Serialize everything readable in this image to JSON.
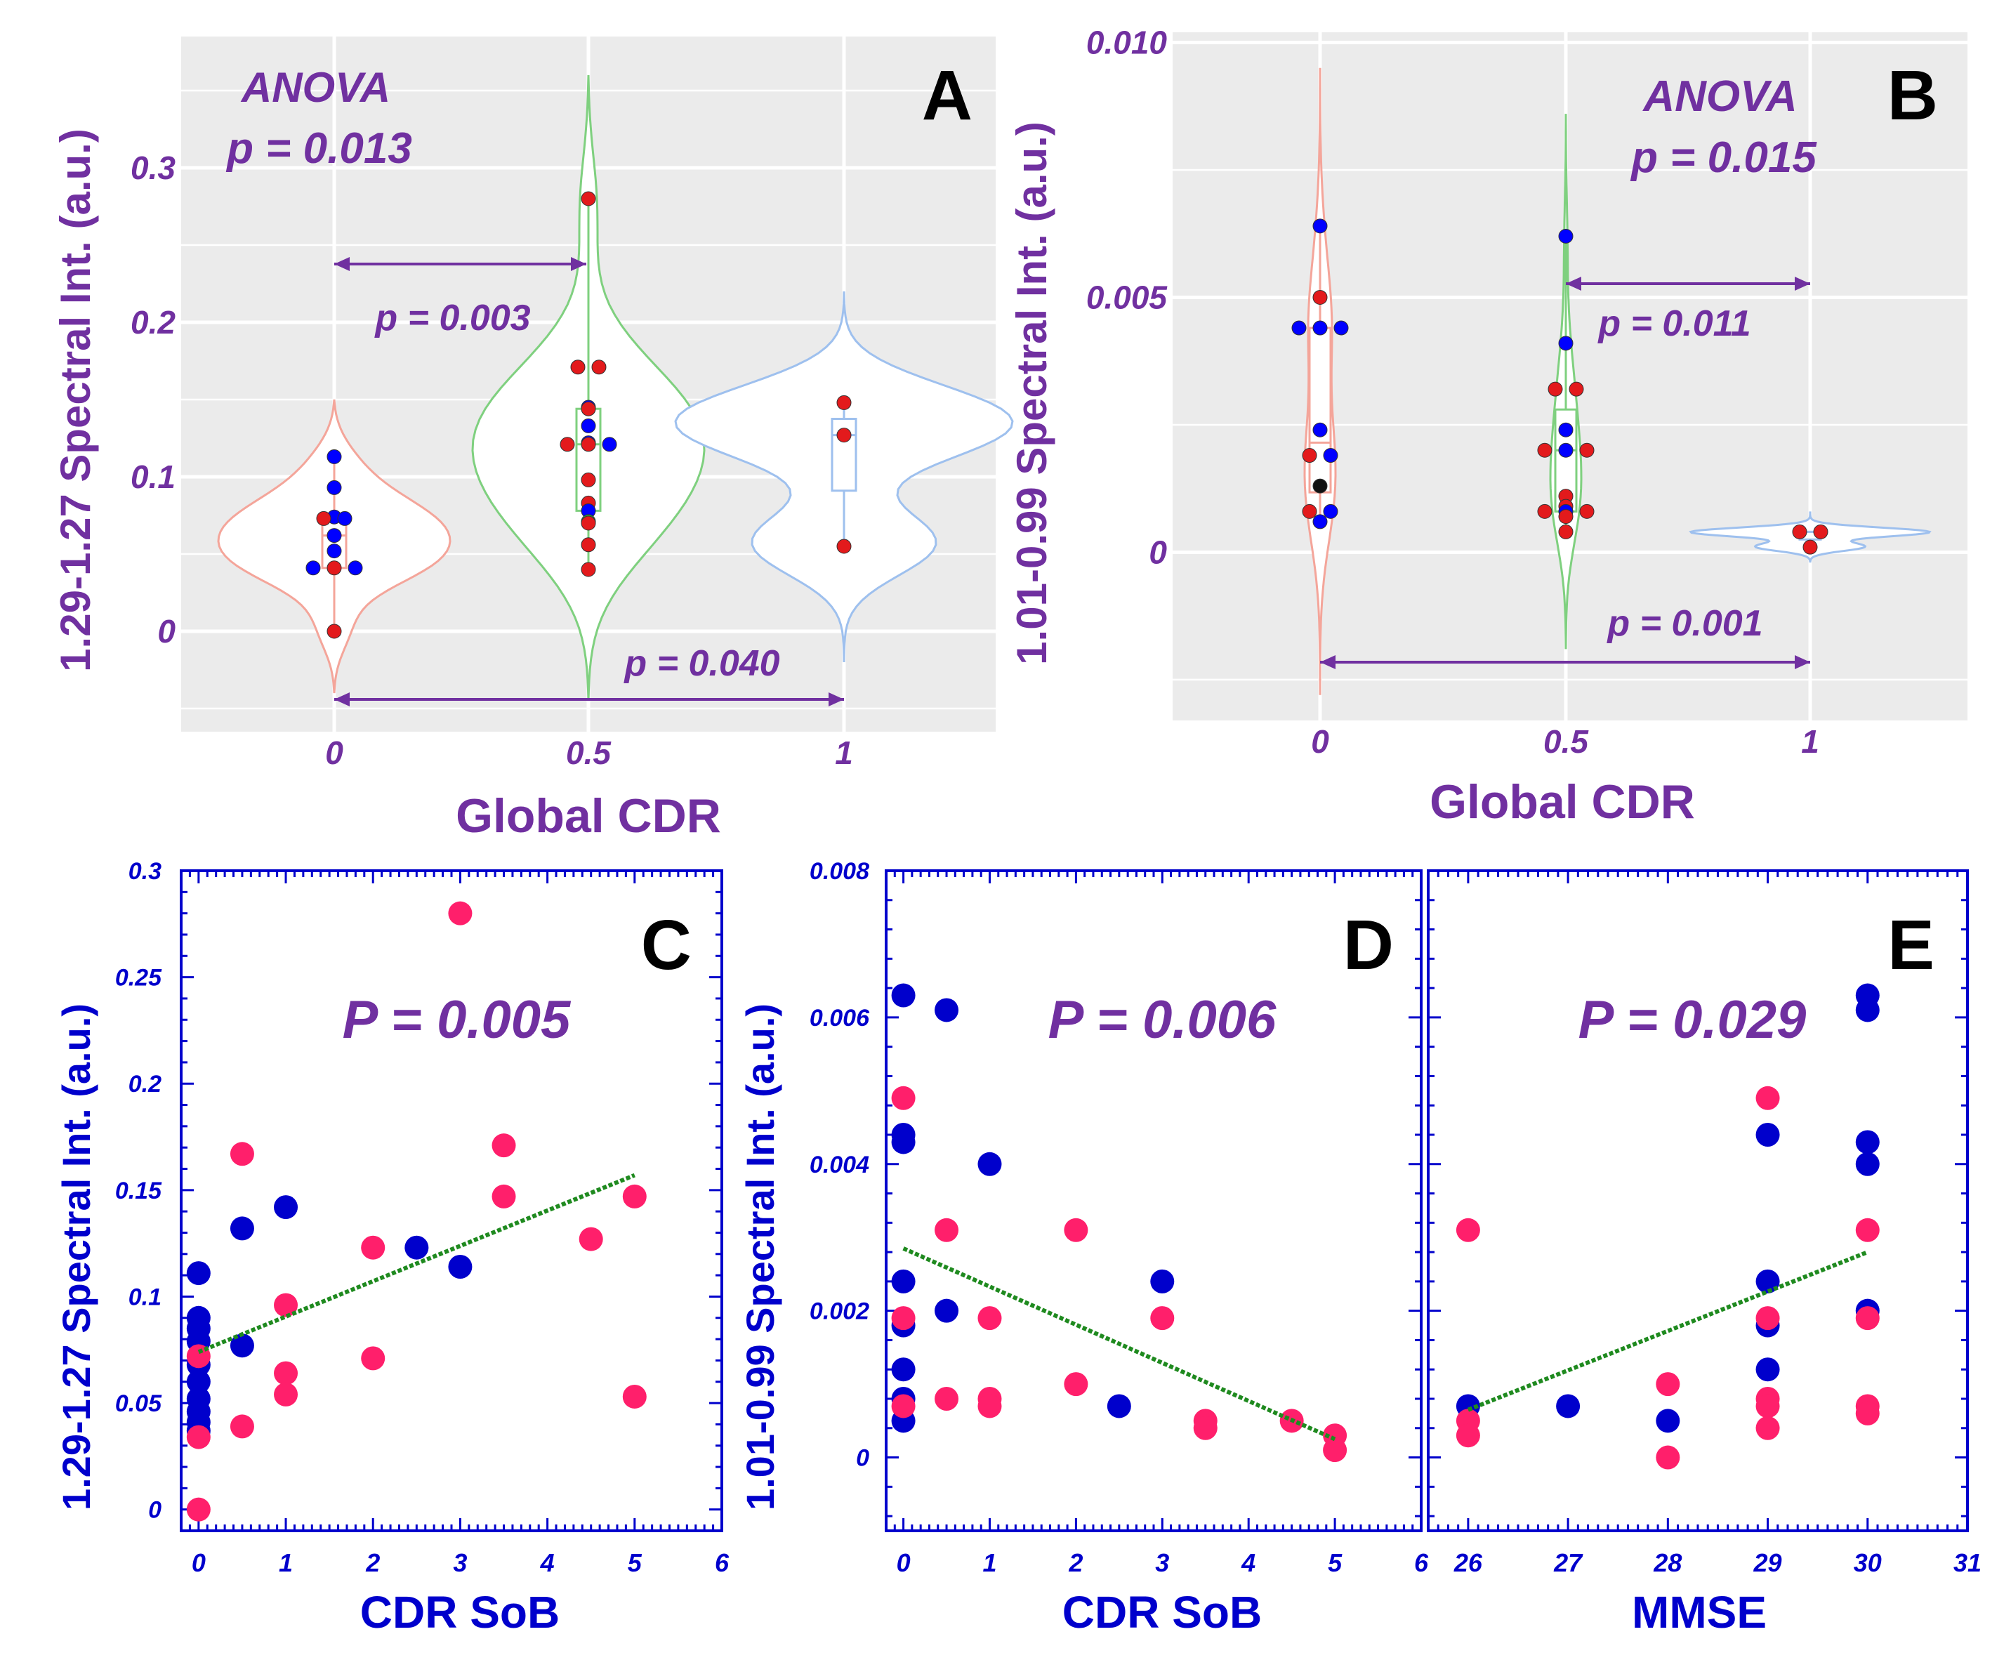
{
  "colors": {
    "purple": "#7030a0",
    "navy": "#0000cc",
    "panel_bg": "#ebebeb",
    "red_dot": "#e31a1c",
    "blue_dot": "#0000ff",
    "pink_dot": "#ff1f6b",
    "scatter_blue": "#0000cc",
    "trend": "#1f8a1f",
    "violin_0": "#f4a59a",
    "violin_05": "#7fd07f",
    "violin_1": "#9ec0ee"
  },
  "chart_data": [
    {
      "panel": "A",
      "type": "violin",
      "ylabel": "1.29-1.27 Spectral Int. (a.u.)",
      "xlabel": "Global CDR",
      "categories": [
        "0",
        "0.5",
        "1"
      ],
      "yticks": [
        "0",
        "0.1",
        "0.2",
        "0.3"
      ],
      "ylim": [
        -0.065,
        0.385
      ],
      "annotations": {
        "anova": "ANOVA",
        "anova_p": "p = 0.013",
        "p1": "p = 0.003",
        "p2": "p = 0.040"
      },
      "groups": [
        {
          "label": "0",
          "violin_range": [
            -0.04,
            0.15
          ],
          "points": [
            {
              "y": 0.113,
              "c": "blue"
            },
            {
              "y": 0.093,
              "c": "blue"
            },
            {
              "y": 0.074,
              "c": "blue"
            },
            {
              "y": 0.073,
              "c": "red"
            },
            {
              "y": 0.073,
              "c": "blue"
            },
            {
              "y": 0.062,
              "c": "blue"
            },
            {
              "y": 0.052,
              "c": "blue"
            },
            {
              "y": 0.041,
              "c": "blue"
            },
            {
              "y": 0.041,
              "c": "red"
            },
            {
              "y": 0.041,
              "c": "blue"
            },
            {
              "y": 0.0,
              "c": "red"
            }
          ]
        },
        {
          "label": "0.5",
          "violin_range": [
            -0.045,
            0.36
          ],
          "points": [
            {
              "y": 0.28,
              "c": "red"
            },
            {
              "y": 0.171,
              "c": "red"
            },
            {
              "y": 0.171,
              "c": "red"
            },
            {
              "y": 0.145,
              "c": "blue"
            },
            {
              "y": 0.144,
              "c": "red"
            },
            {
              "y": 0.133,
              "c": "blue"
            },
            {
              "y": 0.122,
              "c": "blue"
            },
            {
              "y": 0.121,
              "c": "red"
            },
            {
              "y": 0.121,
              "c": "red"
            },
            {
              "y": 0.121,
              "c": "blue"
            },
            {
              "y": 0.098,
              "c": "red"
            },
            {
              "y": 0.083,
              "c": "red"
            },
            {
              "y": 0.078,
              "c": "blue"
            },
            {
              "y": 0.071,
              "c": "green"
            },
            {
              "y": 0.07,
              "c": "red"
            },
            {
              "y": 0.056,
              "c": "red"
            },
            {
              "y": 0.04,
              "c": "red"
            }
          ]
        },
        {
          "label": "1",
          "violin_range": [
            -0.02,
            0.22
          ],
          "points": [
            {
              "y": 0.148,
              "c": "red"
            },
            {
              "y": 0.127,
              "c": "red"
            },
            {
              "y": 0.055,
              "c": "red"
            }
          ]
        }
      ]
    },
    {
      "panel": "B",
      "type": "violin",
      "ylabel": "1.01-0.99 Spectral Int. (a.u.)",
      "xlabel": "Global CDR",
      "categories": [
        "0",
        "0.5",
        "1"
      ],
      "yticks": [
        "0",
        "0.005",
        "0.010"
      ],
      "ylim": [
        -0.0033,
        0.0102
      ],
      "annotations": {
        "anova": "ANOVA",
        "anova_p": "p = 0.015",
        "p1": "p = 0.011",
        "p2": "p = 0.001"
      },
      "groups": [
        {
          "label": "0",
          "violin_range": [
            -0.0028,
            0.0095
          ],
          "points": [
            {
              "y": 0.0064,
              "c": "blue"
            },
            {
              "y": 0.005,
              "c": "red"
            },
            {
              "y": 0.0044,
              "c": "blue"
            },
            {
              "y": 0.0044,
              "c": "blue"
            },
            {
              "y": 0.0044,
              "c": "blue"
            },
            {
              "y": 0.0024,
              "c": "blue"
            },
            {
              "y": 0.0019,
              "c": "red"
            },
            {
              "y": 0.0019,
              "c": "blue"
            },
            {
              "y": 0.0013,
              "c": "black"
            },
            {
              "y": 0.0008,
              "c": "red"
            },
            {
              "y": 0.0008,
              "c": "blue"
            },
            {
              "y": 0.0006,
              "c": "blue"
            }
          ]
        },
        {
          "label": "0.5",
          "violin_range": [
            -0.0019,
            0.0086
          ],
          "points": [
            {
              "y": 0.0062,
              "c": "blue"
            },
            {
              "y": 0.0041,
              "c": "blue"
            },
            {
              "y": 0.0032,
              "c": "red"
            },
            {
              "y": 0.0032,
              "c": "red"
            },
            {
              "y": 0.0024,
              "c": "blue"
            },
            {
              "y": 0.002,
              "c": "red"
            },
            {
              "y": 0.002,
              "c": "blue"
            },
            {
              "y": 0.002,
              "c": "red"
            },
            {
              "y": 0.0011,
              "c": "red"
            },
            {
              "y": 0.0009,
              "c": "red"
            },
            {
              "y": 0.0008,
              "c": "red"
            },
            {
              "y": 0.0008,
              "c": "blue"
            },
            {
              "y": 0.0008,
              "c": "red"
            },
            {
              "y": 0.0007,
              "c": "red"
            },
            {
              "y": 0.0004,
              "c": "red"
            }
          ]
        },
        {
          "label": "1",
          "violin_range": [
            -0.0002,
            0.0008
          ],
          "points": [
            {
              "y": 0.0004,
              "c": "red"
            },
            {
              "y": 0.0004,
              "c": "red"
            },
            {
              "y": 0.0001,
              "c": "red"
            }
          ]
        }
      ]
    },
    {
      "panel": "C",
      "type": "scatter",
      "ylabel": "1.29-1.27 Spectral Int. (a.u.)",
      "xlabel": "CDR SoB",
      "annotation": "P = 0.005",
      "xlim": [
        -0.2,
        6
      ],
      "ylim": [
        -0.01,
        0.3
      ],
      "xticks": [
        "0",
        "1",
        "2",
        "3",
        "4",
        "5",
        "6"
      ],
      "yticks": [
        "0",
        "0.05",
        "0.1",
        "0.15",
        "0.2",
        "0.25",
        "0.3"
      ],
      "trend": {
        "x": [
          0,
          5
        ],
        "y": [
          0.074,
          0.157
        ]
      },
      "blue": [
        [
          0,
          0.111
        ],
        [
          0,
          0.09
        ],
        [
          0,
          0.085
        ],
        [
          0,
          0.079
        ],
        [
          0,
          0.068
        ],
        [
          0,
          0.06
        ],
        [
          0,
          0.052
        ],
        [
          0,
          0.046
        ],
        [
          0,
          0.041
        ],
        [
          0,
          0.037
        ],
        [
          0.5,
          0.132
        ],
        [
          0.5,
          0.077
        ],
        [
          1,
          0.142
        ],
        [
          2.5,
          0.123
        ],
        [
          3,
          0.114
        ]
      ],
      "pink": [
        [
          0,
          0.072
        ],
        [
          0,
          0.034
        ],
        [
          0,
          0.0
        ],
        [
          0.5,
          0.167
        ],
        [
          0.5,
          0.039
        ],
        [
          1,
          0.096
        ],
        [
          1,
          0.064
        ],
        [
          1,
          0.054
        ],
        [
          2,
          0.123
        ],
        [
          2,
          0.071
        ],
        [
          3,
          0.28
        ],
        [
          3.5,
          0.171
        ],
        [
          3.5,
          0.147
        ],
        [
          4.5,
          0.127
        ],
        [
          5,
          0.147
        ],
        [
          5,
          0.053
        ]
      ]
    },
    {
      "panel": "D",
      "type": "scatter",
      "ylabel": "1.01-0.99 Spectral Int. (a.u.)",
      "xlabel": "CDR SoB",
      "annotation": "P = 0.006",
      "xlim": [
        -0.2,
        6
      ],
      "ylim": [
        -0.001,
        0.008
      ],
      "xticks": [
        "0",
        "1",
        "2",
        "3",
        "4",
        "5",
        "6"
      ],
      "yticks": [
        "0",
        "0.002",
        "0.004",
        "0.006",
        "0.008"
      ],
      "trend": {
        "x": [
          0,
          5
        ],
        "y": [
          0.00285,
          0.00025
        ]
      },
      "blue": [
        [
          0,
          0.0063
        ],
        [
          0,
          0.0044
        ],
        [
          0,
          0.0043
        ],
        [
          0,
          0.0024
        ],
        [
          0,
          0.0018
        ],
        [
          0,
          0.0012
        ],
        [
          0,
          0.0008
        ],
        [
          0,
          0.0005
        ],
        [
          0.5,
          0.0061
        ],
        [
          0.5,
          0.002
        ],
        [
          1,
          0.004
        ],
        [
          2.5,
          0.0007
        ],
        [
          3,
          0.0024
        ]
      ],
      "pink": [
        [
          0,
          0.0049
        ],
        [
          0,
          0.0019
        ],
        [
          0,
          0.0007
        ],
        [
          0.5,
          0.0031
        ],
        [
          0.5,
          0.0008
        ],
        [
          1,
          0.0019
        ],
        [
          1,
          0.0008
        ],
        [
          1,
          0.0007
        ],
        [
          2,
          0.0031
        ],
        [
          2,
          0.001
        ],
        [
          3,
          0.0019
        ],
        [
          3.5,
          0.0005
        ],
        [
          3.5,
          0.0004
        ],
        [
          4.5,
          0.0005
        ],
        [
          5,
          0.0003
        ],
        [
          5,
          0.0001
        ]
      ]
    },
    {
      "panel": "E",
      "type": "scatter",
      "ylabel": "",
      "xlabel": "MMSE",
      "annotation": "P = 0.029",
      "xlim": [
        25.6,
        31
      ],
      "ylim": [
        -0.001,
        0.008
      ],
      "xticks": [
        "26",
        "27",
        "28",
        "29",
        "30",
        "31"
      ],
      "yticks": [],
      "trend": {
        "x": [
          26,
          30
        ],
        "y": [
          0.00065,
          0.0028
        ]
      },
      "blue": [
        [
          26,
          0.0007
        ],
        [
          27,
          0.0007
        ],
        [
          28,
          0.0005
        ],
        [
          29,
          0.0044
        ],
        [
          29,
          0.0024
        ],
        [
          29,
          0.0018
        ],
        [
          29,
          0.0012
        ],
        [
          30,
          0.0063
        ],
        [
          30,
          0.0061
        ],
        [
          30,
          0.0043
        ],
        [
          30,
          0.004
        ],
        [
          30,
          0.002
        ]
      ],
      "pink": [
        [
          26,
          0.0031
        ],
        [
          26,
          0.0005
        ],
        [
          26,
          0.0003
        ],
        [
          28,
          0.001
        ],
        [
          28,
          0.0
        ],
        [
          29,
          0.0049
        ],
        [
          29,
          0.0019
        ],
        [
          29,
          0.0008
        ],
        [
          29,
          0.0007
        ],
        [
          29,
          0.0004
        ],
        [
          30,
          0.0031
        ],
        [
          30,
          0.0019
        ],
        [
          30,
          0.0007
        ],
        [
          30,
          0.0006
        ]
      ]
    }
  ]
}
